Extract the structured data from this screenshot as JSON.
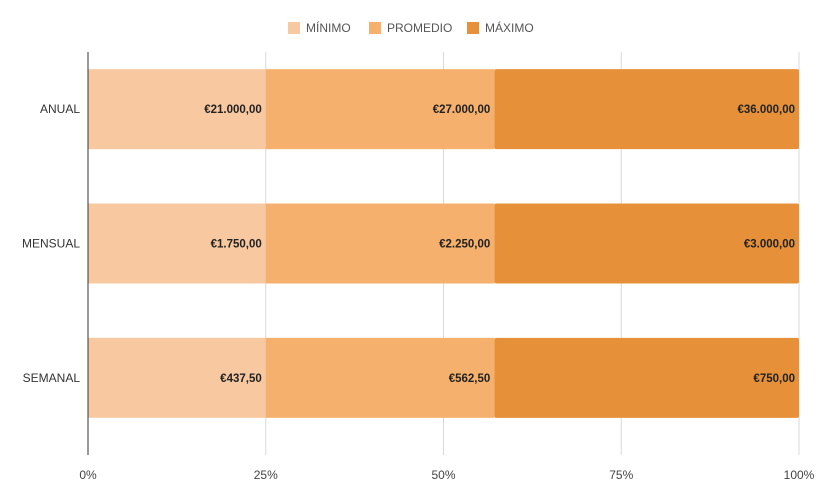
{
  "chart_data": {
    "type": "bar",
    "orientation": "horizontal",
    "stacked": "percent",
    "title": "",
    "xlabel": "",
    "ylabel": "",
    "categories": [
      "ANUAL",
      "MENSUAL",
      "SEMANAL"
    ],
    "series": [
      {
        "name": "MÍNIMO",
        "color": "#f8c9a0",
        "values": [
          21000,
          1750,
          437.5
        ],
        "labels": [
          "€21.000,00",
          "€1.750,00",
          "€437,50"
        ]
      },
      {
        "name": "PROMEDIO",
        "color": "#f4b06c",
        "values": [
          27000,
          2250,
          562.5
        ],
        "labels": [
          "€27.000,00",
          "€2.250,00",
          "€562,50"
        ]
      },
      {
        "name": "MÁXIMO",
        "color": "#e6913a",
        "values": [
          36000,
          3000,
          750
        ],
        "labels": [
          "€36.000,00",
          "€3.000,00",
          "€750,00"
        ]
      }
    ],
    "x_ticks": [
      "0%",
      "25%",
      "50%",
      "75%",
      "100%"
    ],
    "x_tick_values": [
      0,
      25,
      50,
      75,
      100
    ],
    "xlim": [
      0,
      100
    ],
    "grid": true,
    "legend_position": "top-center"
  }
}
